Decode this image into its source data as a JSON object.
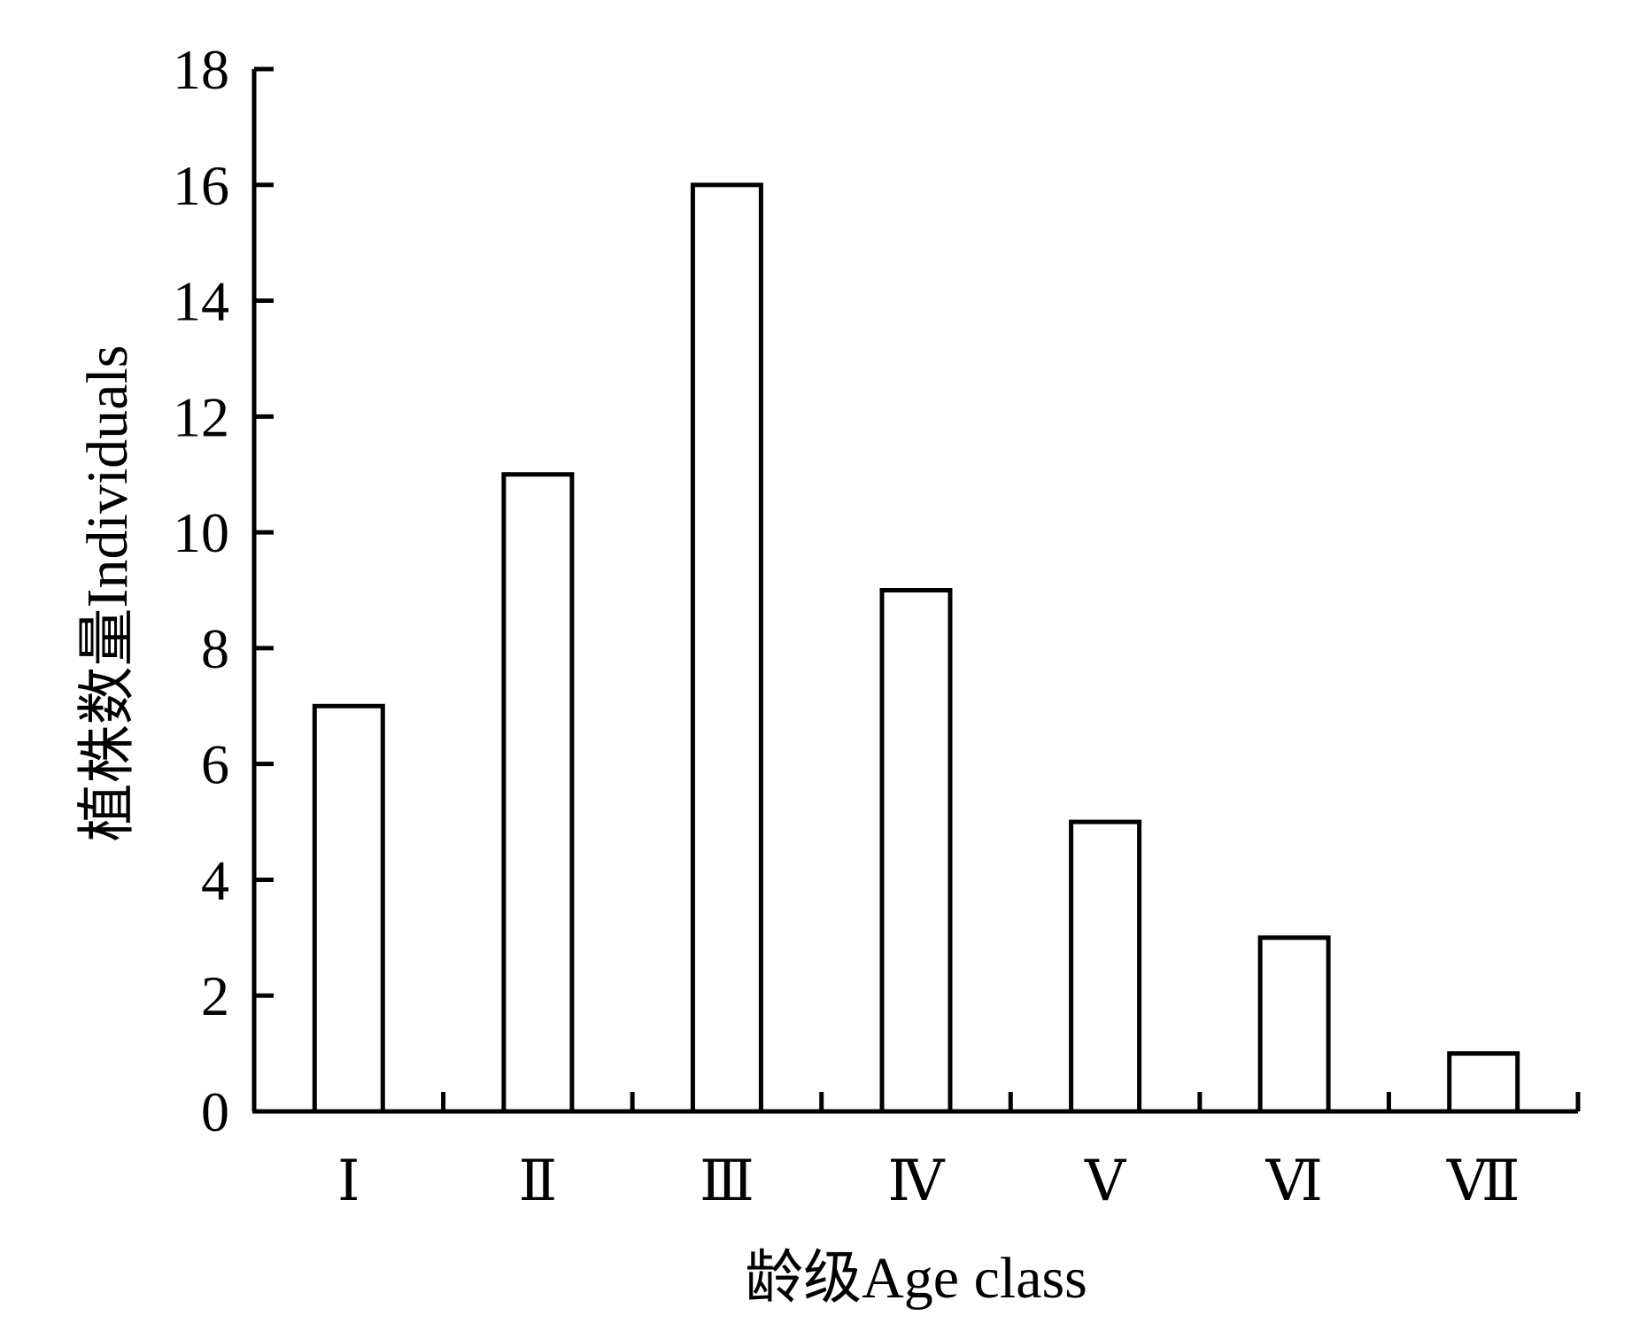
{
  "colors": {
    "bar_fill": "#ffffff",
    "bar_stroke": "#000000",
    "axis": "#000000",
    "background": "#ffffff"
  },
  "chart_data": {
    "type": "bar",
    "title": "",
    "xlabel": "龄级Age class",
    "ylabel": "植株数量Individuals",
    "categories": [
      "Ⅰ",
      "Ⅱ",
      "Ⅲ",
      "Ⅳ",
      "Ⅴ",
      "Ⅵ",
      "Ⅶ"
    ],
    "values": [
      7,
      11,
      16,
      9,
      5,
      3,
      1
    ],
    "ylim": [
      0,
      18
    ],
    "yticks": [
      0,
      2,
      4,
      6,
      8,
      10,
      12,
      14,
      16,
      18
    ],
    "grid": false,
    "legend": "none"
  }
}
